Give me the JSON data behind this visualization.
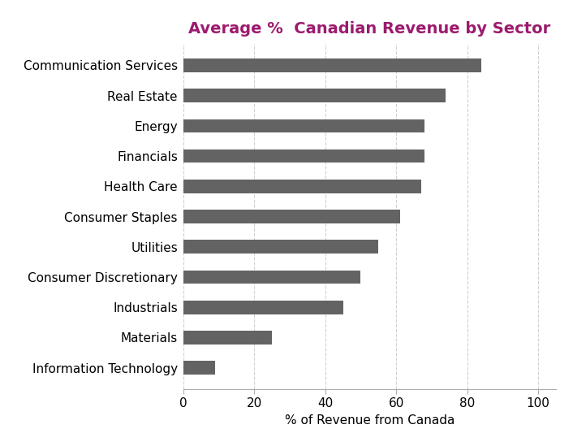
{
  "title": "Average %  Canadian Revenue by Sector",
  "xlabel": "% of Revenue from Canada",
  "categories": [
    "Communication Services",
    "Real Estate",
    "Energy",
    "Financials",
    "Health Care",
    "Consumer Staples",
    "Utilities",
    "Consumer Discretionary",
    "Industrials",
    "Materials",
    "Information Technology"
  ],
  "values": [
    84,
    74,
    68,
    68,
    67,
    61,
    55,
    50,
    45,
    25,
    9
  ],
  "bar_color": "#636363",
  "title_color": "#9B1B6E",
  "xlim": [
    0,
    105
  ],
  "xticks": [
    0,
    20,
    40,
    60,
    80,
    100
  ],
  "background_color": "#ffffff",
  "grid_color": "#d0d0d0",
  "title_fontsize": 14,
  "label_fontsize": 11,
  "tick_fontsize": 11,
  "bar_height": 0.45
}
